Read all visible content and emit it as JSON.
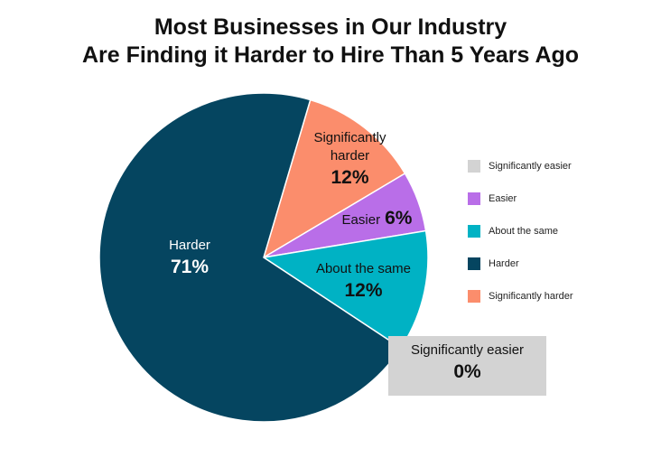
{
  "chart_data": {
    "type": "pie",
    "title": [
      "Most Businesses in Our Industry",
      "Are Finding it Harder to Hire Than 5 Years Ago"
    ],
    "categories": [
      "Significantly easier",
      "Easier",
      "About the same",
      "Harder",
      "Significantly harder"
    ],
    "values": [
      0,
      6,
      12,
      71,
      12
    ],
    "value_labels": [
      "0%",
      "6%",
      "12%",
      "71%",
      "12%"
    ],
    "colors": [
      "#d3d3d3",
      "#b96ee8",
      "#00b2c4",
      "#054560",
      "#fb8d6c"
    ],
    "legend": "right"
  }
}
